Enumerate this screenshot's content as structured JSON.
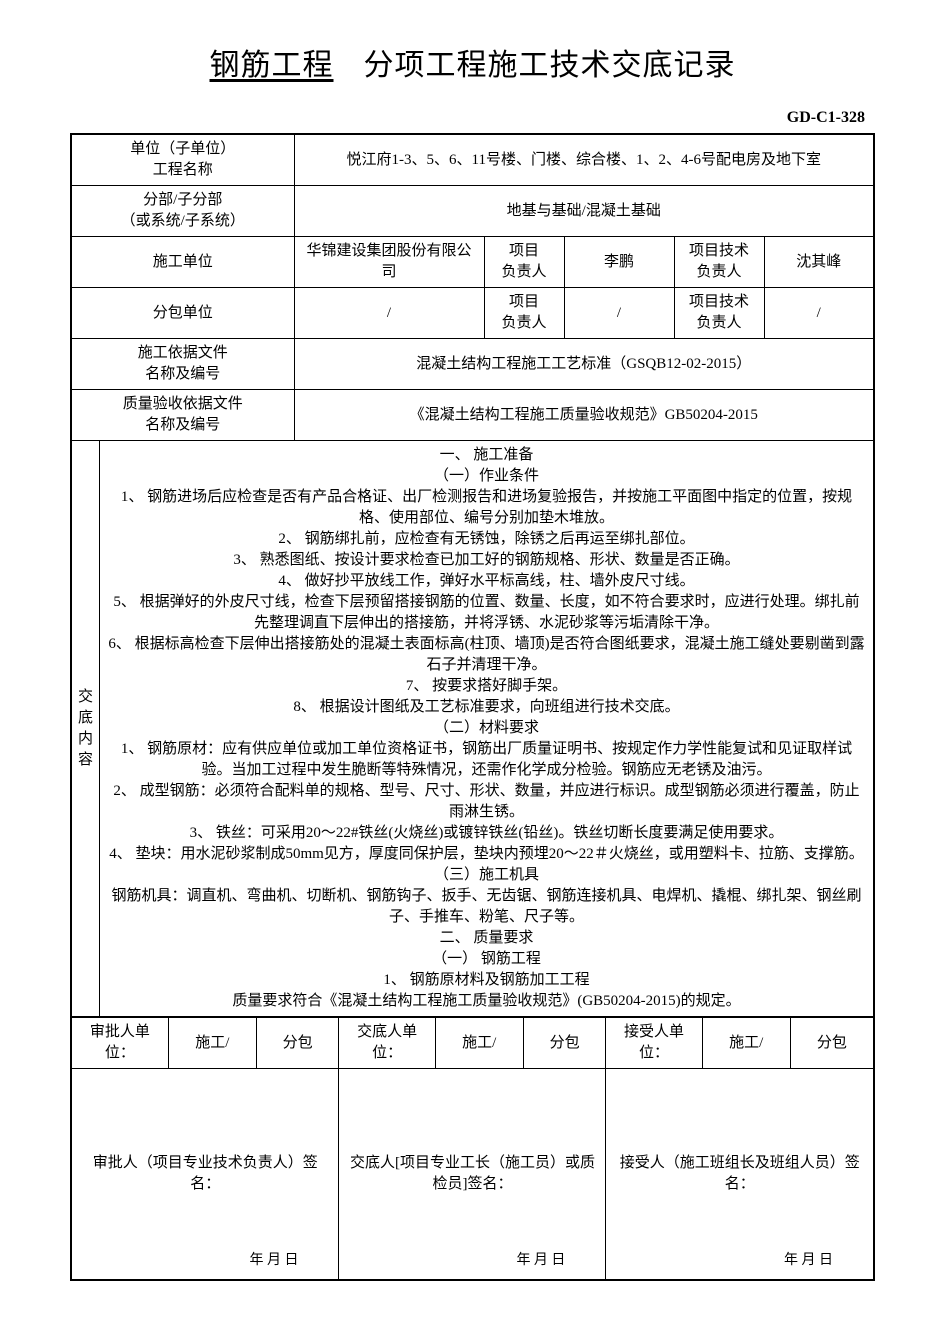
{
  "title": {
    "underlined": "钢筋工程",
    "rest": "分项工程施工技术交底记录"
  },
  "doc_code": "GD-C1-328",
  "header_rows": {
    "unit_name_label": "单位（子单位）\n工程名称",
    "unit_name_value": "悦江府1-3、5、6、11号楼、门楼、综合楼、1、2、4-6号配电房及地下室",
    "section_label": "分部/子分部\n（或系统/子系统）",
    "section_value": "地基与基础/混凝土基础",
    "construct_unit_label": "施工单位",
    "construct_unit_value": "华锦建设集团股份有限公司",
    "proj_leader_label": "项目\n负责人",
    "proj_leader_value": "李鹏",
    "tech_leader_label": "项目技术\n负责人",
    "tech_leader_value": "沈其峰",
    "subcontract_label": "分包单位",
    "subcontract_value": "/",
    "sub_proj_leader_value": "/",
    "sub_tech_leader_value": "/",
    "basis_doc_label": "施工依据文件\n名称及编号",
    "basis_doc_value": "混凝土结构工程施工工艺标准（GSQB12-02-2015）",
    "quality_doc_label": "质量验收依据文件\n名称及编号",
    "quality_doc_value": "《混凝土结构工程施工质量验收规范》GB50204-2015"
  },
  "side_label": "交底内容",
  "content_lines": [
    "一、 施工准备",
    "（一）作业条件",
    "1、 钢筋进场后应检查是否有产品合格证、出厂检测报告和进场复验报告，并按施工平面图中指定的位置，按规格、使用部位、编号分别加垫木堆放。",
    "2、 钢筋绑扎前，应检查有无锈蚀，除锈之后再运至绑扎部位。",
    "3、 熟悉图纸、按设计要求检查已加工好的钢筋规格、形状、数量是否正确。",
    "4、 做好抄平放线工作，弹好水平标高线，柱、墙外皮尺寸线。",
    "5、 根据弹好的外皮尺寸线，检查下层预留搭接钢筋的位置、数量、长度，如不符合要求时，应进行处理。绑扎前先整理调直下层伸出的搭接筋，并将浮锈、水泥砂浆等污垢清除干净。",
    "6、 根据标高检查下层伸出搭接筋处的混凝土表面标高(柱顶、墙顶)是否符合图纸要求，混凝土施工缝处要剔凿到露石子并清理干净。",
    "7、 按要求搭好脚手架。",
    "8、 根据设计图纸及工艺标准要求，向班组进行技术交底。",
    "（二）材料要求",
    "1、 钢筋原材：应有供应单位或加工单位资格证书，钢筋出厂质量证明书、按规定作力学性能复试和见证取样试验。当加工过程中发生脆断等特殊情况，还需作化学成分检验。钢筋应无老锈及油污。",
    "2、 成型钢筋：必须符合配料单的规格、型号、尺寸、形状、数量，并应进行标识。成型钢筋必须进行覆盖，防止雨淋生锈。",
    "3、 铁丝：可采用20～22#铁丝(火烧丝)或镀锌铁丝(铅丝)。铁丝切断长度要满足使用要求。",
    "4、 垫块：用水泥砂浆制成50mm见方，厚度同保护层，垫块内预埋20～22＃火烧丝，或用塑料卡、拉筋、支撑筋。",
    "（三）施工机具",
    "钢筋机具：调直机、弯曲机、切断机、钢筋钩子、扳手、无齿锯、钢筋连接机具、电焊机、撬棍、绑扎架、钢丝刷子、手推车、粉笔、尺子等。",
    "二、 质量要求",
    "（一） 钢筋工程",
    "1、 钢筋原材料及钢筋加工工程",
    "质量要求符合《混凝土结构工程施工质量验收规范》(GB50204-2015)的规定。"
  ],
  "sig_row": {
    "col1_a": "审批人单位：",
    "col1_b": "施工/",
    "col1_c": "分包",
    "col2_a": "交底人单位：",
    "col2_b": "施工/",
    "col2_c": "分包",
    "col3_a": "接受人单位：",
    "col3_b": "施工/",
    "col3_c": "分包"
  },
  "sig_blocks": {
    "a": "审批人（项目专业技术负责人）签名：",
    "b": "交底人[项目专业工长（施工员）或质检员]签名：",
    "c": "接受人（施工班组长及班组人员）签名：",
    "date": "年  月  日"
  }
}
